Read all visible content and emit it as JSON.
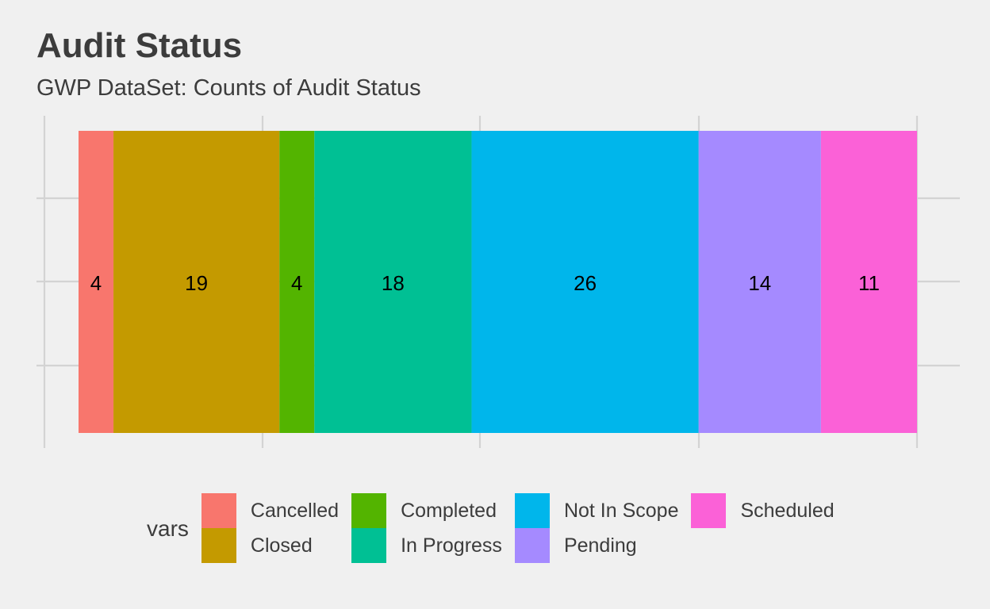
{
  "chart_data": {
    "type": "bar",
    "orientation": "horizontal-stacked",
    "title": "Audit Status",
    "subtitle": "GWP DataSet: Counts of Audit Status",
    "xlabel": "",
    "ylabel": "",
    "grid": true,
    "legend": {
      "title": "vars",
      "placement": "bottom"
    },
    "categories": [
      "Cancelled",
      "Closed",
      "Completed",
      "In Progress",
      "Not In Scope",
      "Pending",
      "Scheduled"
    ],
    "values": [
      4,
      19,
      4,
      18,
      26,
      14,
      11
    ],
    "colors": [
      "#f8766d",
      "#c49a00",
      "#53b400",
      "#00c094",
      "#00b6eb",
      "#a58aff",
      "#fb61d7"
    ]
  }
}
